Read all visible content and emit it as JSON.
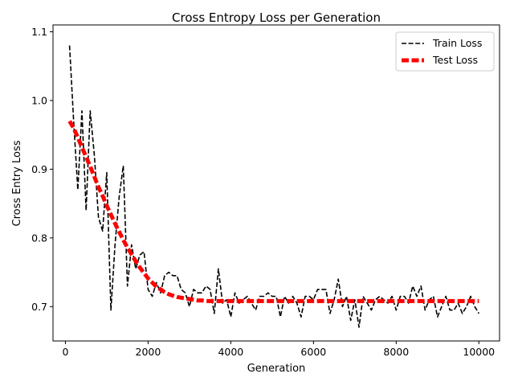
{
  "chart_data": {
    "type": "line",
    "title": "Cross Entropy Loss per Generation",
    "xlabel": "Generation",
    "ylabel": "Cross Entry Loss",
    "xlim": [
      -300,
      10500
    ],
    "ylim": [
      0.65,
      1.11
    ],
    "xticks": [
      0,
      2000,
      4000,
      6000,
      8000,
      10000
    ],
    "yticks": [
      0.7,
      0.8,
      0.9,
      1.0,
      1.1
    ],
    "xtick_labels": [
      "0",
      "2000",
      "4000",
      "6000",
      "8000",
      "10000"
    ],
    "ytick_labels": [
      "0.7",
      "0.8",
      "0.9",
      "1.0",
      "1.1"
    ],
    "grid": false,
    "legend_position": "top-right",
    "series": [
      {
        "name": "Train Loss",
        "color": "#000000",
        "style": "dashed",
        "x": [
          100,
          200,
          300,
          400,
          500,
          600,
          700,
          800,
          900,
          1000,
          1100,
          1200,
          1300,
          1400,
          1500,
          1600,
          1700,
          1800,
          1900,
          2000,
          2100,
          2200,
          2300,
          2400,
          2500,
          2600,
          2700,
          2800,
          2900,
          3000,
          3100,
          3200,
          3300,
          3400,
          3500,
          3600,
          3700,
          3800,
          3900,
          4000,
          4100,
          4200,
          4300,
          4400,
          4500,
          4600,
          4700,
          4800,
          4900,
          5000,
          5100,
          5200,
          5300,
          5400,
          5500,
          5600,
          5700,
          5800,
          5900,
          6000,
          6100,
          6200,
          6300,
          6400,
          6500,
          6600,
          6700,
          6800,
          6900,
          7000,
          7100,
          7200,
          7300,
          7400,
          7500,
          7600,
          7700,
          7800,
          7900,
          8000,
          8100,
          8200,
          8300,
          8400,
          8500,
          8600,
          8700,
          8800,
          8900,
          9000,
          9100,
          9200,
          9300,
          9400,
          9500,
          9600,
          9700,
          9800,
          9900,
          10000
        ],
        "y": [
          1.08,
          0.97,
          0.87,
          0.985,
          0.84,
          0.985,
          0.92,
          0.83,
          0.81,
          0.895,
          0.695,
          0.79,
          0.86,
          0.905,
          0.73,
          0.79,
          0.755,
          0.775,
          0.78,
          0.725,
          0.715,
          0.735,
          0.72,
          0.745,
          0.75,
          0.745,
          0.745,
          0.725,
          0.72,
          0.7,
          0.725,
          0.72,
          0.72,
          0.73,
          0.725,
          0.69,
          0.755,
          0.705,
          0.71,
          0.685,
          0.72,
          0.705,
          0.71,
          0.715,
          0.705,
          0.695,
          0.715,
          0.715,
          0.72,
          0.715,
          0.715,
          0.685,
          0.715,
          0.705,
          0.715,
          0.705,
          0.685,
          0.715,
          0.715,
          0.71,
          0.725,
          0.725,
          0.725,
          0.69,
          0.71,
          0.74,
          0.7,
          0.715,
          0.68,
          0.71,
          0.67,
          0.715,
          0.705,
          0.695,
          0.71,
          0.715,
          0.71,
          0.705,
          0.715,
          0.695,
          0.715,
          0.715,
          0.705,
          0.73,
          0.715,
          0.73,
          0.695,
          0.71,
          0.715,
          0.685,
          0.7,
          0.715,
          0.695,
          0.695,
          0.705,
          0.69,
          0.7,
          0.715,
          0.7,
          0.69
        ]
      },
      {
        "name": "Test Loss",
        "color": "#ff0000",
        "style": "dashed-thick",
        "x": [
          100,
          200,
          300,
          400,
          500,
          600,
          700,
          800,
          900,
          1000,
          1100,
          1200,
          1300,
          1400,
          1500,
          1600,
          1700,
          1800,
          1900,
          2000,
          2100,
          2200,
          2300,
          2400,
          2500,
          2600,
          2700,
          2800,
          2900,
          3000,
          3100,
          3200,
          3300,
          3400,
          3500,
          3600,
          3700,
          3800,
          3900,
          4000,
          4100,
          4200,
          4300,
          4400,
          4500,
          4600,
          4700,
          4800,
          4900,
          5000,
          5100,
          5200,
          5300,
          5400,
          5500,
          5600,
          5700,
          5800,
          5900,
          6000,
          6100,
          6200,
          6300,
          6400,
          6500,
          6600,
          6700,
          6800,
          6900,
          7000,
          7100,
          7200,
          7300,
          7400,
          7500,
          7600,
          7700,
          7800,
          7900,
          8000,
          8100,
          8200,
          8300,
          8400,
          8500,
          8600,
          8700,
          8800,
          8900,
          9000,
          9100,
          9200,
          9300,
          9400,
          9500,
          9600,
          9700,
          9800,
          9900,
          10000
        ],
        "y": [
          0.97,
          0.96,
          0.946,
          0.932,
          0.918,
          0.904,
          0.889,
          0.874,
          0.861,
          0.847,
          0.834,
          0.821,
          0.809,
          0.797,
          0.786,
          0.776,
          0.766,
          0.757,
          0.749,
          0.741,
          0.735,
          0.729,
          0.725,
          0.721,
          0.718,
          0.716,
          0.714,
          0.713,
          0.712,
          0.711,
          0.71,
          0.709,
          0.709,
          0.708,
          0.708,
          0.708,
          0.708,
          0.708,
          0.708,
          0.708,
          0.708,
          0.708,
          0.708,
          0.708,
          0.708,
          0.708,
          0.708,
          0.708,
          0.708,
          0.708,
          0.708,
          0.708,
          0.708,
          0.708,
          0.708,
          0.708,
          0.708,
          0.708,
          0.708,
          0.708,
          0.708,
          0.708,
          0.708,
          0.708,
          0.708,
          0.708,
          0.708,
          0.708,
          0.708,
          0.708,
          0.708,
          0.708,
          0.708,
          0.708,
          0.708,
          0.708,
          0.708,
          0.708,
          0.708,
          0.708,
          0.708,
          0.708,
          0.708,
          0.708,
          0.708,
          0.708,
          0.708,
          0.708,
          0.708,
          0.708,
          0.708,
          0.708,
          0.708,
          0.708,
          0.708,
          0.708,
          0.708,
          0.708,
          0.708,
          0.708
        ]
      }
    ]
  }
}
